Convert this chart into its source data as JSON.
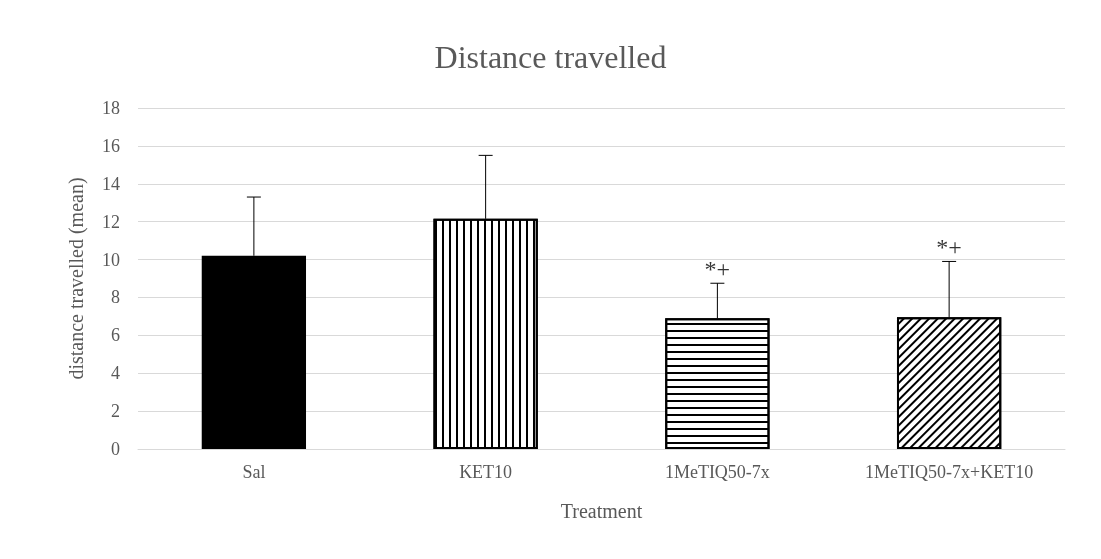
{
  "chart_data": {
    "type": "bar",
    "title": "Distance travelled",
    "xlabel": "Treatment",
    "ylabel": "distance travelled (mean)",
    "categories": [
      "Sal",
      "KET10",
      "1MeTIQ50-7x",
      "1MeTIQ50-7x+KET10"
    ],
    "values": [
      10.2,
      12.15,
      6.9,
      6.95
    ],
    "colors": [
      "#000000",
      "#ffffff",
      "#ffffff",
      "#ffffff"
    ],
    "errors": [
      [
        10.2,
        13.3
      ],
      [
        12.15,
        15.5
      ],
      [
        6.9,
        8.75
      ],
      [
        6.95,
        9.9
      ]
    ],
    "ylim": [
      0,
      18
    ],
    "yticks": [
      0,
      2,
      4,
      6,
      8,
      10,
      12,
      14,
      16,
      18
    ],
    "grid": "y",
    "annotations": [
      {
        "text": "*+",
        "x": "1MeTIQ50-7x",
        "y": 8.75
      },
      {
        "text": "*+",
        "x": "1MeTIQ50-7x+KET10",
        "y": 9.9
      }
    ]
  }
}
